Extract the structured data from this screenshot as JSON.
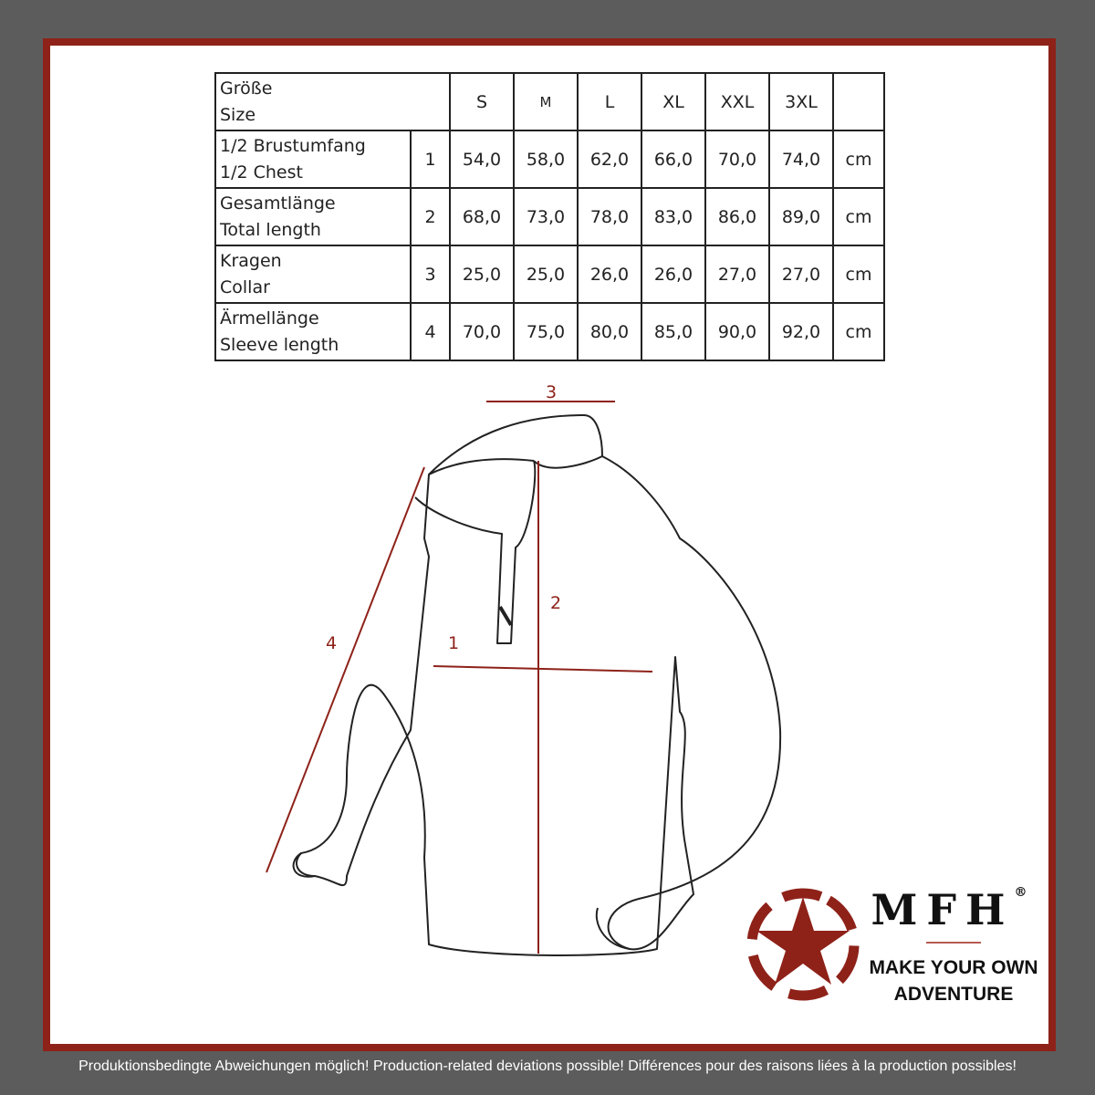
{
  "table": {
    "header": {
      "label_de": "Größe",
      "label_en": "Size",
      "sizes": [
        "S",
        "M",
        "L",
        "XL",
        "XXL",
        "3XL"
      ]
    },
    "rows": [
      {
        "label_de": "1/2 Brustumfang",
        "label_en": "1/2 Chest",
        "num": "1",
        "values": [
          "54,0",
          "58,0",
          "62,0",
          "66,0",
          "70,0",
          "74,0"
        ],
        "unit": "cm"
      },
      {
        "label_de": "Gesamtlänge",
        "label_en": "Total length",
        "num": "2",
        "values": [
          "68,0",
          "73,0",
          "78,0",
          "83,0",
          "86,0",
          "89,0"
        ],
        "unit": "cm"
      },
      {
        "label_de": "Kragen",
        "label_en": "Collar",
        "num": "3",
        "values": [
          "25,0",
          "25,0",
          "26,0",
          "26,0",
          "27,0",
          "27,0"
        ],
        "unit": "cm"
      },
      {
        "label_de": "Ärmellänge",
        "label_en": "Sleeve length",
        "num": "4",
        "values": [
          "70,0",
          "75,0",
          "80,0",
          "85,0",
          "90,0",
          "92,0"
        ],
        "unit": "cm"
      }
    ]
  },
  "diagram": {
    "labels": [
      "1",
      "2",
      "3",
      "4"
    ],
    "accent": "#8e2219"
  },
  "brand": {
    "name": "MFH",
    "registered": "®",
    "slogan_line1": "MAKE YOUR OWN",
    "slogan_line2": "ADVENTURE"
  },
  "footer": "Produktionsbedingte Abweichungen möglich! Production-related deviations possible! Différences pour des raisons liées à la production possibles!"
}
